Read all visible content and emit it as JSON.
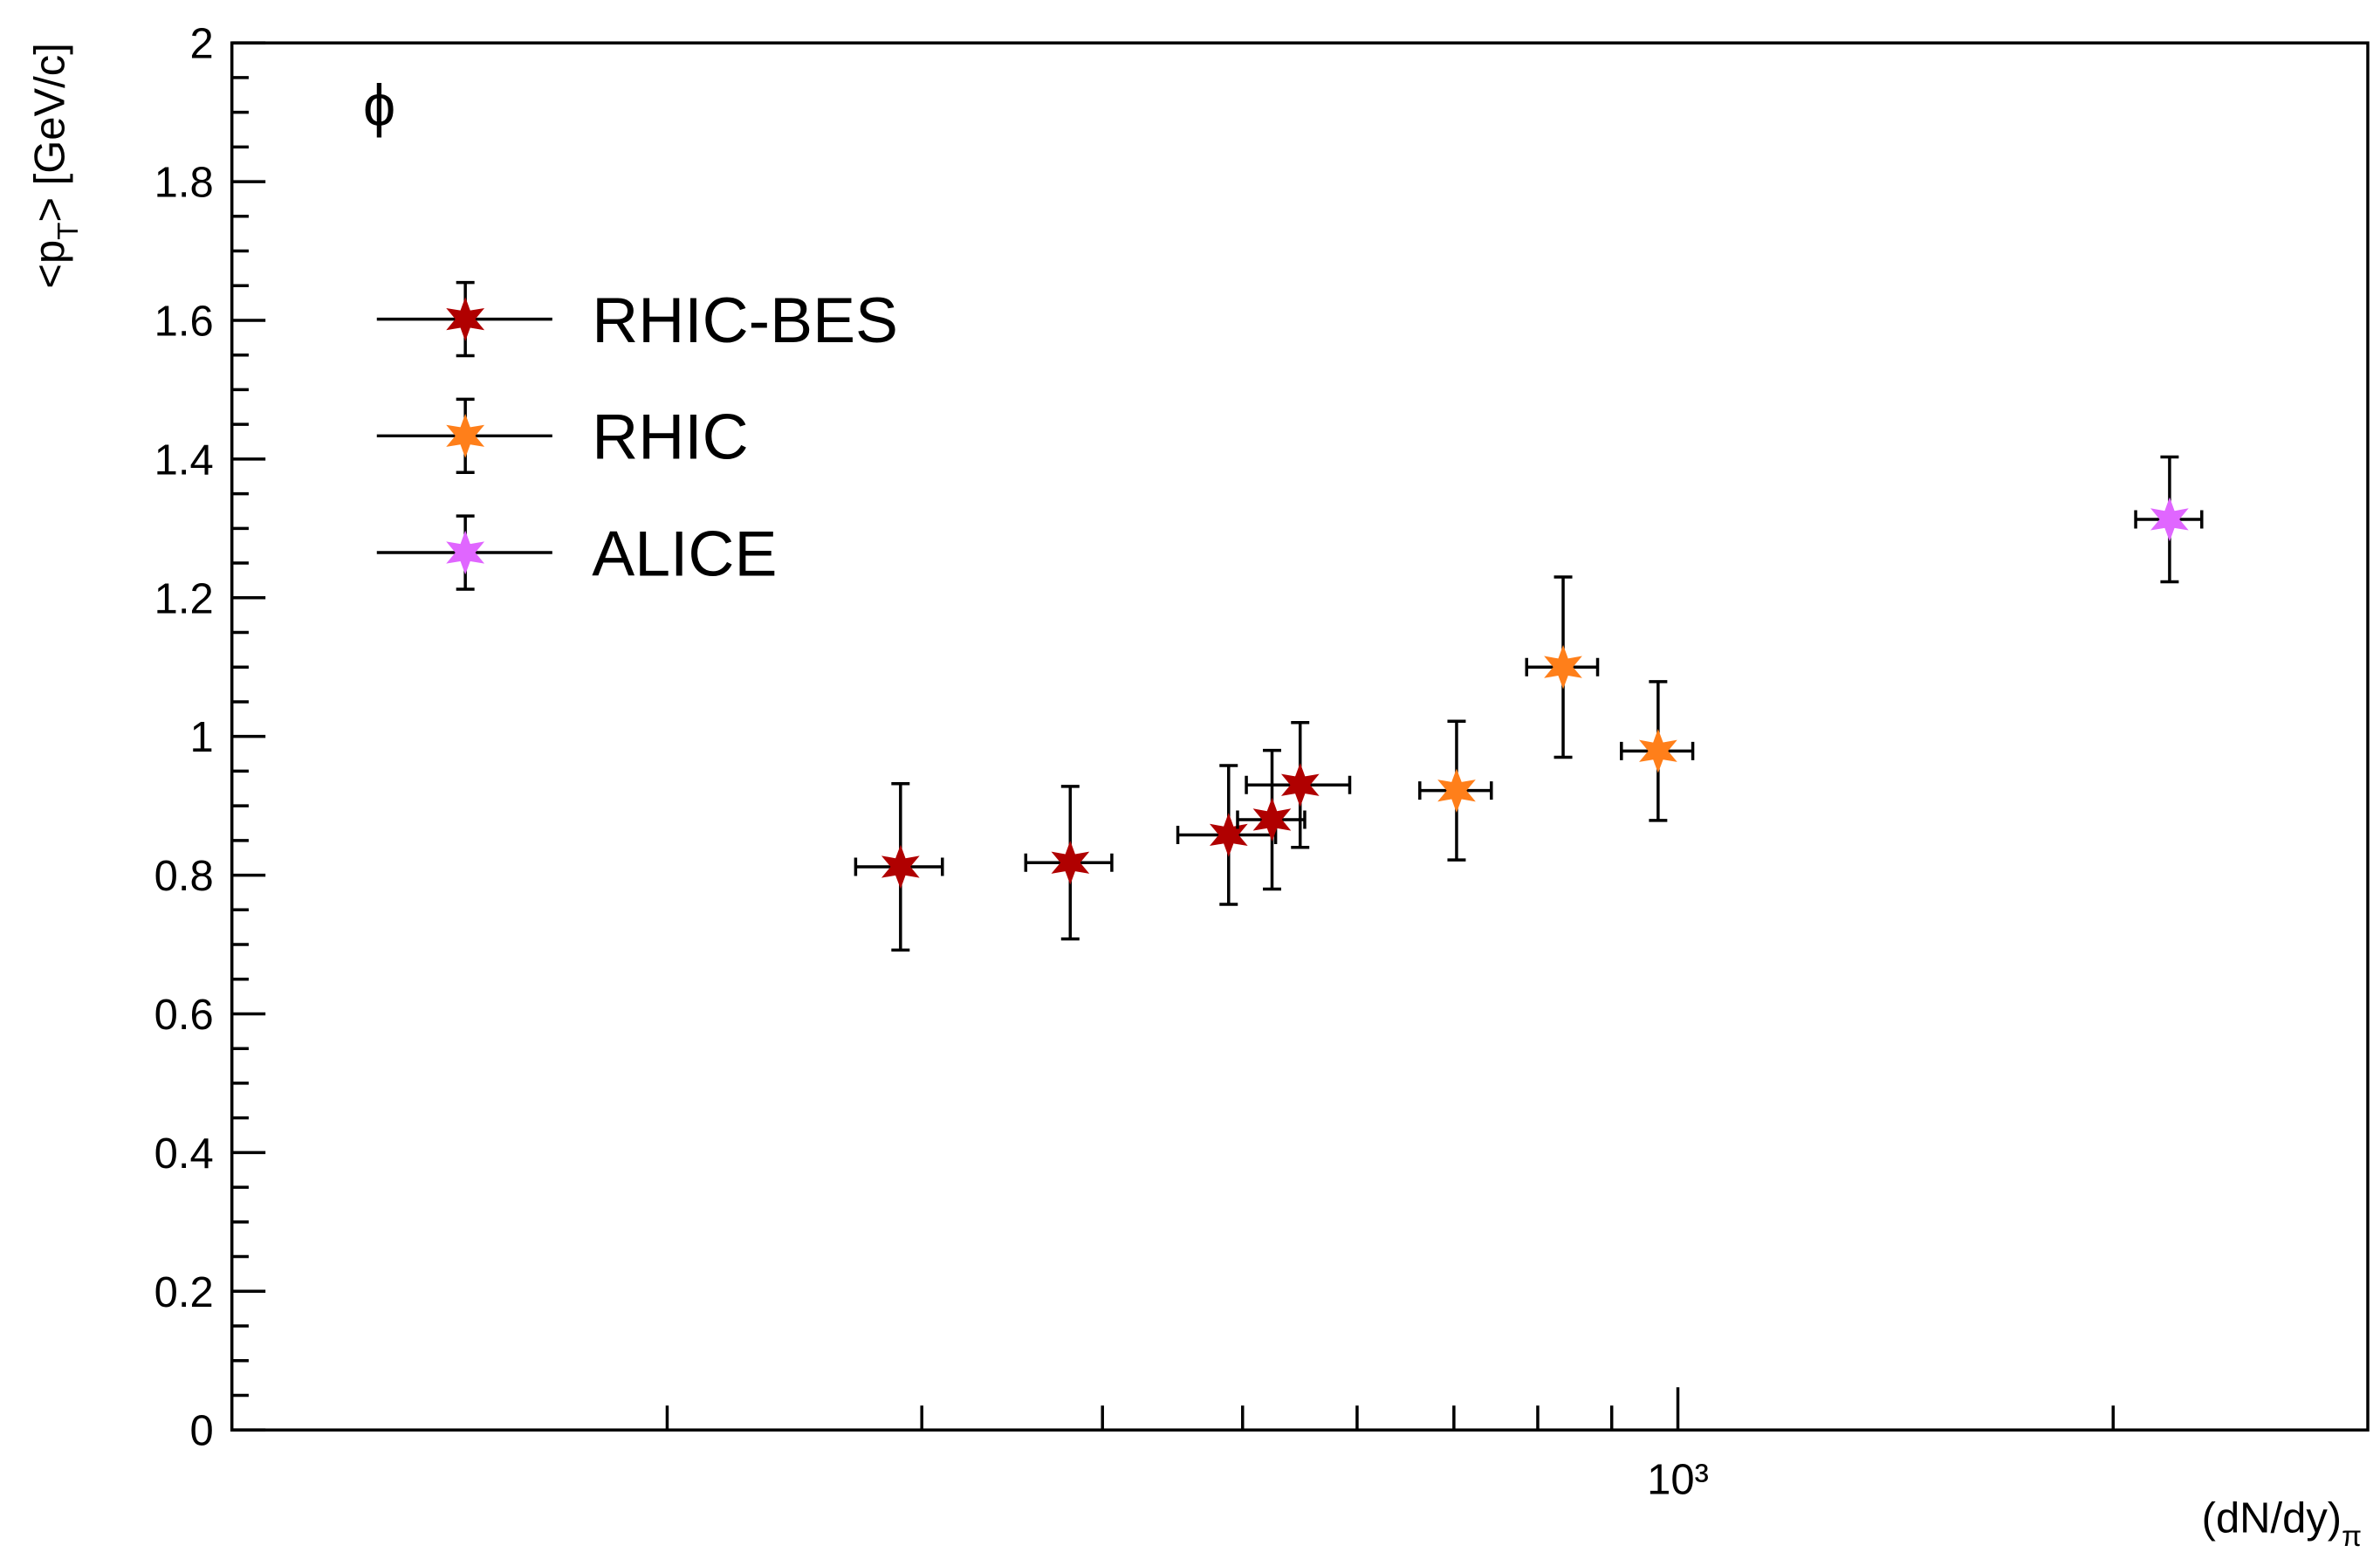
{
  "chart_data": {
    "type": "scatter",
    "annotation": "ϕ",
    "xlabel": [
      "(dN/dy)",
      "π"
    ],
    "ylabel": [
      "<p",
      "T",
      "> [GeV/c]"
    ],
    "xlog": true,
    "xlim": [
      100,
      3000
    ],
    "xticks": [
      {
        "value": 1000,
        "label": "10³"
      }
    ],
    "xminor_ticks": [
      200,
      300,
      400,
      500,
      600,
      700,
      800,
      900,
      2000
    ],
    "ylim": [
      0,
      2
    ],
    "yticks": [
      0,
      0.2,
      0.4,
      0.6,
      0.8,
      1,
      1.2,
      1.4,
      1.6,
      1.8,
      2
    ],
    "yminor_divisions": 4,
    "legend": "top-left",
    "series": [
      {
        "name": "RHIC-BES",
        "color": "#b00000",
        "x": [
          290,
          380,
          489,
          524,
          548
        ],
        "xerr": [
          20,
          26,
          38,
          28,
          45
        ],
        "values": [
          0.812,
          0.818,
          0.858,
          0.88,
          0.93
        ],
        "errors": [
          0.12,
          0.11,
          0.1,
          0.1,
          0.09
        ]
      },
      {
        "name": "RHIC",
        "color": "#ff7f1a",
        "x": [
          703,
          833,
          969
        ],
        "xerr": [
          40,
          47,
          55
        ],
        "values": [
          0.922,
          1.1,
          0.979
        ],
        "errors": [
          0.1,
          0.13,
          0.1
        ]
      },
      {
        "name": "ALICE",
        "color": "#e066ff",
        "x": [
          2188
        ],
        "xerr": [
          115
        ],
        "values": [
          1.313
        ],
        "errors": [
          0.09
        ]
      }
    ]
  }
}
